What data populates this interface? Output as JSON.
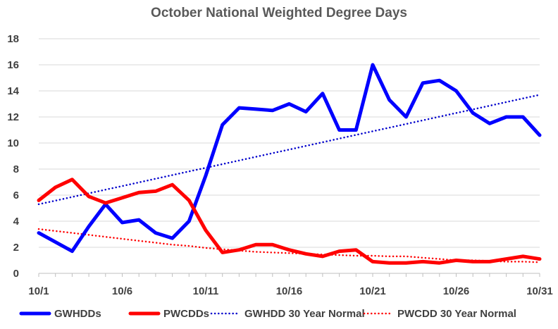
{
  "chart_data": {
    "type": "line",
    "title": "October National Weighted Degree Days",
    "xlabel": "",
    "ylabel": "",
    "x": [
      "10/1",
      "10/2",
      "10/3",
      "10/4",
      "10/5",
      "10/6",
      "10/7",
      "10/8",
      "10/9",
      "10/10",
      "10/11",
      "10/12",
      "10/13",
      "10/14",
      "10/15",
      "10/16",
      "10/17",
      "10/18",
      "10/19",
      "10/20",
      "10/21",
      "10/22",
      "10/23",
      "10/24",
      "10/25",
      "10/26",
      "10/27",
      "10/28",
      "10/29",
      "10/30",
      "10/31"
    ],
    "x_tick_labels": [
      "10/1",
      "10/6",
      "10/11",
      "10/16",
      "10/21",
      "10/26",
      "10/31"
    ],
    "ylim": [
      0,
      18
    ],
    "y_ticks": [
      0,
      2,
      4,
      6,
      8,
      10,
      12,
      14,
      16,
      18
    ],
    "grid": "horizontal",
    "legend_position": "bottom",
    "series": [
      {
        "name": "GWHDDs",
        "color": "#0000ff",
        "style": "solid",
        "values": [
          3.1,
          2.4,
          1.7,
          3.6,
          5.3,
          3.9,
          4.1,
          3.1,
          2.7,
          4.0,
          7.5,
          11.4,
          12.7,
          12.6,
          12.5,
          13.0,
          12.4,
          13.8,
          11.0,
          11.0,
          16.0,
          13.3,
          12.0,
          14.6,
          14.8,
          14.0,
          12.3,
          11.5,
          12.0,
          12.0,
          10.6
        ]
      },
      {
        "name": "PWCDDs",
        "color": "#ff0000",
        "style": "solid",
        "values": [
          5.6,
          6.6,
          7.2,
          5.9,
          5.4,
          5.8,
          6.2,
          6.3,
          6.8,
          5.6,
          3.3,
          1.6,
          1.8,
          2.2,
          2.2,
          1.8,
          1.5,
          1.3,
          1.7,
          1.8,
          0.9,
          0.8,
          0.8,
          0.9,
          0.8,
          1.0,
          0.9,
          0.9,
          1.1,
          1.3,
          1.1
        ]
      },
      {
        "name": "GWHDD 30 Year Normal",
        "color": "#0000cc",
        "style": "dotted",
        "values": [
          5.3,
          5.58,
          5.86,
          6.14,
          6.42,
          6.7,
          6.98,
          7.26,
          7.54,
          7.82,
          8.1,
          8.38,
          8.66,
          8.94,
          9.22,
          9.5,
          9.78,
          10.06,
          10.34,
          10.62,
          10.9,
          11.18,
          11.46,
          11.74,
          12.02,
          12.3,
          12.58,
          12.86,
          13.14,
          13.42,
          13.7
        ]
      },
      {
        "name": "PWCDD 30 Year Normal",
        "color": "#ff0000",
        "style": "dotted",
        "values": [
          3.4,
          3.25,
          3.1,
          2.95,
          2.8,
          2.65,
          2.5,
          2.35,
          2.2,
          2.1,
          1.95,
          1.85,
          1.75,
          1.65,
          1.6,
          1.55,
          1.5,
          1.45,
          1.4,
          1.35,
          1.35,
          1.3,
          1.3,
          1.2,
          1.1,
          1.0,
          1.0,
          0.95,
          0.9,
          0.9,
          0.85
        ]
      }
    ]
  }
}
